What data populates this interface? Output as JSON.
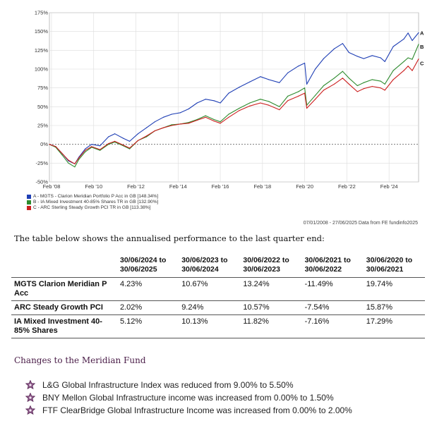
{
  "chart_data": {
    "type": "line",
    "ylim": [
      -50,
      175
    ],
    "yticks": [
      -50,
      -25,
      0,
      25,
      50,
      75,
      100,
      125,
      150,
      175
    ],
    "ytick_labels": [
      "-50%",
      "-25%",
      "0%",
      "25%",
      "50%",
      "75%",
      "100%",
      "125%",
      "150%",
      "175%"
    ],
    "xlim": [
      2008.0,
      2025.5
    ],
    "xticks": [
      2008.1,
      2010.1,
      2012.1,
      2014.1,
      2016.1,
      2018.1,
      2020.1,
      2022.1,
      2024.1
    ],
    "xtick_labels": [
      "Feb '08",
      "Feb '10",
      "Feb '12",
      "Feb '14",
      "Feb '16",
      "Feb '18",
      "Feb '20",
      "Feb '22",
      "Feb '24"
    ],
    "grid": true,
    "legend_position": "bottom-left",
    "series": [
      {
        "name": "A - MGTS - Clarion Meridian Portfolio P Acc in GB [148.34%]",
        "end_label": "A",
        "color": "#1f3fb5",
        "points": [
          [
            2008.0,
            0
          ],
          [
            2008.3,
            -3
          ],
          [
            2008.6,
            -12
          ],
          [
            2008.9,
            -22
          ],
          [
            2009.2,
            -26
          ],
          [
            2009.4,
            -17
          ],
          [
            2009.7,
            -6
          ],
          [
            2010.0,
            0
          ],
          [
            2010.4,
            -2
          ],
          [
            2010.8,
            10
          ],
          [
            2011.1,
            14
          ],
          [
            2011.5,
            8
          ],
          [
            2011.8,
            4
          ],
          [
            2012.2,
            14
          ],
          [
            2012.6,
            22
          ],
          [
            2013.0,
            30
          ],
          [
            2013.4,
            36
          ],
          [
            2013.8,
            40
          ],
          [
            2014.2,
            42
          ],
          [
            2014.6,
            47
          ],
          [
            2015.0,
            55
          ],
          [
            2015.4,
            60
          ],
          [
            2015.8,
            58
          ],
          [
            2016.1,
            55
          ],
          [
            2016.5,
            68
          ],
          [
            2017.0,
            76
          ],
          [
            2017.5,
            83
          ],
          [
            2018.0,
            90
          ],
          [
            2018.4,
            86
          ],
          [
            2018.9,
            82
          ],
          [
            2019.3,
            95
          ],
          [
            2019.8,
            104
          ],
          [
            2020.1,
            108
          ],
          [
            2020.2,
            80
          ],
          [
            2020.6,
            100
          ],
          [
            2021.0,
            114
          ],
          [
            2021.5,
            127
          ],
          [
            2021.9,
            134
          ],
          [
            2022.2,
            122
          ],
          [
            2022.6,
            117
          ],
          [
            2022.9,
            114
          ],
          [
            2023.3,
            118
          ],
          [
            2023.7,
            115
          ],
          [
            2023.9,
            110
          ],
          [
            2024.3,
            130
          ],
          [
            2024.8,
            140
          ],
          [
            2025.0,
            148
          ],
          [
            2025.2,
            138
          ],
          [
            2025.5,
            148.34
          ]
        ]
      },
      {
        "name": "B - IA Mixed Investment 40-85% Shares TR in GB [132.90%]",
        "end_label": "B",
        "color": "#2e8b2e",
        "points": [
          [
            2008.0,
            0
          ],
          [
            2008.3,
            -4
          ],
          [
            2008.6,
            -14
          ],
          [
            2008.9,
            -25
          ],
          [
            2009.2,
            -30
          ],
          [
            2009.4,
            -20
          ],
          [
            2009.7,
            -10
          ],
          [
            2010.0,
            -4
          ],
          [
            2010.4,
            -8
          ],
          [
            2010.8,
            0
          ],
          [
            2011.1,
            3
          ],
          [
            2011.5,
            -2
          ],
          [
            2011.8,
            -6
          ],
          [
            2012.2,
            5
          ],
          [
            2012.6,
            10
          ],
          [
            2013.0,
            18
          ],
          [
            2013.4,
            22
          ],
          [
            2013.8,
            26
          ],
          [
            2014.2,
            27
          ],
          [
            2014.6,
            29
          ],
          [
            2015.0,
            33
          ],
          [
            2015.4,
            38
          ],
          [
            2015.8,
            33
          ],
          [
            2016.1,
            30
          ],
          [
            2016.5,
            40
          ],
          [
            2017.0,
            48
          ],
          [
            2017.5,
            55
          ],
          [
            2018.0,
            60
          ],
          [
            2018.4,
            57
          ],
          [
            2018.9,
            50
          ],
          [
            2019.3,
            64
          ],
          [
            2019.8,
            70
          ],
          [
            2020.1,
            75
          ],
          [
            2020.2,
            52
          ],
          [
            2020.6,
            65
          ],
          [
            2021.0,
            78
          ],
          [
            2021.5,
            88
          ],
          [
            2021.9,
            97
          ],
          [
            2022.2,
            88
          ],
          [
            2022.6,
            78
          ],
          [
            2022.9,
            82
          ],
          [
            2023.3,
            86
          ],
          [
            2023.7,
            84
          ],
          [
            2023.9,
            80
          ],
          [
            2024.3,
            98
          ],
          [
            2024.8,
            110
          ],
          [
            2025.0,
            115
          ],
          [
            2025.2,
            113
          ],
          [
            2025.5,
            132.9
          ]
        ]
      },
      {
        "name": "C - ARC Sterling Steady Growth PCI TR in GB [113.38%]",
        "end_label": "C",
        "color": "#cc1f1f",
        "points": [
          [
            2008.0,
            0
          ],
          [
            2008.3,
            -3
          ],
          [
            2008.6,
            -12
          ],
          [
            2008.9,
            -21
          ],
          [
            2009.2,
            -26
          ],
          [
            2009.4,
            -18
          ],
          [
            2009.7,
            -8
          ],
          [
            2010.0,
            -3
          ],
          [
            2010.4,
            -7
          ],
          [
            2010.8,
            1
          ],
          [
            2011.1,
            4
          ],
          [
            2011.5,
            -1
          ],
          [
            2011.8,
            -5
          ],
          [
            2012.2,
            5
          ],
          [
            2012.6,
            11
          ],
          [
            2013.0,
            18
          ],
          [
            2013.4,
            22
          ],
          [
            2013.8,
            25
          ],
          [
            2014.2,
            27
          ],
          [
            2014.6,
            28
          ],
          [
            2015.0,
            32
          ],
          [
            2015.4,
            36
          ],
          [
            2015.8,
            31
          ],
          [
            2016.1,
            28
          ],
          [
            2016.5,
            36
          ],
          [
            2017.0,
            45
          ],
          [
            2017.5,
            51
          ],
          [
            2018.0,
            55
          ],
          [
            2018.4,
            52
          ],
          [
            2018.9,
            46
          ],
          [
            2019.3,
            58
          ],
          [
            2019.8,
            64
          ],
          [
            2020.1,
            68
          ],
          [
            2020.2,
            48
          ],
          [
            2020.6,
            60
          ],
          [
            2021.0,
            72
          ],
          [
            2021.5,
            80
          ],
          [
            2021.9,
            88
          ],
          [
            2022.2,
            80
          ],
          [
            2022.6,
            70
          ],
          [
            2022.9,
            74
          ],
          [
            2023.3,
            77
          ],
          [
            2023.7,
            75
          ],
          [
            2023.9,
            72
          ],
          [
            2024.3,
            86
          ],
          [
            2024.8,
            98
          ],
          [
            2025.0,
            104
          ],
          [
            2025.2,
            98
          ],
          [
            2025.5,
            113.38
          ]
        ]
      }
    ]
  },
  "source_note": "07/01/2008 - 27/06/2025 Data from FE fundinfo2025",
  "intro_text": "The table below shows the annualised performance to the last quarter end:",
  "table": {
    "headers": [
      "",
      "30/06/2024 to 30/06/2025",
      "30/06/2023 to 30/06/2024",
      "30/06/2022 to 30/06/2023",
      "30/06/2021 to 30/06/2022",
      "30/06/2020 to 30/06/2021"
    ],
    "rows": [
      {
        "fund": "MGTS Clarion Meridian P Acc",
        "values": [
          "4.23%",
          "10.67%",
          "13.24%",
          "-11.49%",
          "19.74%"
        ]
      },
      {
        "fund": "ARC Steady Growth PCI",
        "values": [
          "2.02%",
          "9.24%",
          "10.57%",
          "-7.54%",
          "15.87%"
        ]
      },
      {
        "fund": "IA Mixed Investment 40-85% Shares",
        "values": [
          "5.12%",
          "10.13%",
          "11.82%",
          "-7.16%",
          "17.29%"
        ]
      }
    ]
  },
  "changes": {
    "title": "Changes to the Meridian Fund",
    "bullet_icon": "flower-bullet-icon",
    "accent_color": "#6b2a66",
    "items": [
      "L&G Global Infrastructure Index was reduced from 9.00% to 5.50%",
      "BNY Mellon Global Infrastructure income was increased from 0.00% to 1.50%",
      "FTF ClearBridge Global Infrastructure Income was increased from 0.00% to 2.00%"
    ]
  }
}
